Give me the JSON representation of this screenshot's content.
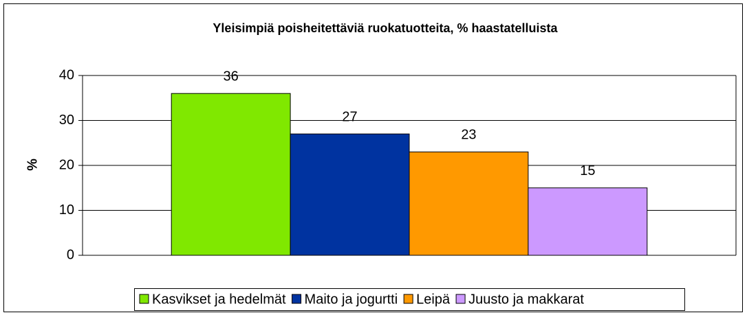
{
  "chart_data": {
    "type": "bar",
    "title": "Yleisimpiä poisheitettäviä ruokatuotteita, % haastatelluista",
    "y_label": "%",
    "categories": [
      null
    ],
    "series": [
      {
        "name": "Kasvikset ja hedelmät",
        "color": "#80e800",
        "values": [
          36
        ]
      },
      {
        "name": "Maito ja jogurtti",
        "color": "#0033a0",
        "values": [
          27
        ]
      },
      {
        "name": "Leipä",
        "color": "#ff9900",
        "values": [
          23
        ]
      },
      {
        "name": "Juusto ja makkarat",
        "color": "#cc99ff",
        "values": [
          15
        ]
      }
    ],
    "ylim": [
      0,
      40
    ],
    "yticks": [
      0,
      10,
      20,
      30,
      40
    ],
    "grid": true,
    "legend": "bottom"
  }
}
